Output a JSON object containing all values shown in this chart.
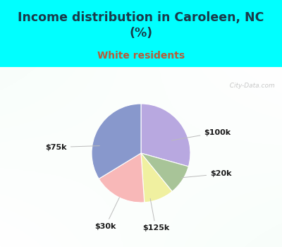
{
  "title": "Income distribution in Caroleen, NC\n(%)",
  "subtitle": "White residents",
  "title_color": "#1a3a4a",
  "subtitle_color": "#b85c38",
  "background_top": "#00ffff",
  "labels": [
    "$100k",
    "$20k",
    "$125k",
    "$30k",
    "$75k"
  ],
  "sizes": [
    27,
    9,
    9,
    16,
    31
  ],
  "colors": [
    "#b8a8e0",
    "#a8c498",
    "#f0f0a0",
    "#f8b8b8",
    "#8898cc"
  ],
  "label_color": "#1a1a1a",
  "watermark": "City-Data.com",
  "startangle": 90,
  "chart_bg_left": "#c8e8d0",
  "chart_bg_right": "#e8f8f0"
}
